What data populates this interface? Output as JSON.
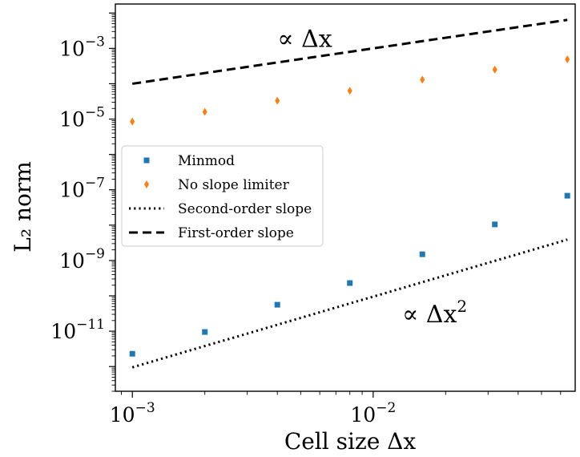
{
  "chart_data": {
    "type": "scatter",
    "x_scale": "log",
    "y_scale": "log",
    "xlim": [
      0.00085,
      0.069
    ],
    "ylim": [
      2e-13,
      0.018
    ],
    "xlabel": "Cell size Δx",
    "ylabel": "L₂ norm",
    "x_ticks": [
      {
        "value": 0.001,
        "base": "10",
        "exp": "−3"
      },
      {
        "value": 0.01,
        "base": "10",
        "exp": "−2"
      }
    ],
    "y_ticks": [
      {
        "value": 0.001,
        "base": "10",
        "exp": "−3"
      },
      {
        "value": 1e-05,
        "base": "10",
        "exp": "−5"
      },
      {
        "value": 1e-07,
        "base": "10",
        "exp": "−7"
      },
      {
        "value": 1e-09,
        "base": "10",
        "exp": "−9"
      },
      {
        "value": 1e-11,
        "base": "10",
        "exp": "−11"
      }
    ],
    "grid": false,
    "legend_position": "center-left",
    "series": [
      {
        "name": "Minmod",
        "kind": "markers",
        "marker": "square",
        "color": "#1f77b4",
        "x": [
          0.001,
          0.002,
          0.004,
          0.008,
          0.016,
          0.032,
          0.064
        ],
        "y": [
          2.3e-12,
          9.5e-12,
          5.6e-11,
          2.3e-10,
          1.5e-09,
          1.05e-08,
          6.8e-08
        ]
      },
      {
        "name": "No slope limiter",
        "kind": "markers",
        "marker": "thin_diamond",
        "color": "#ff7f0e",
        "x": [
          0.001,
          0.002,
          0.004,
          0.008,
          0.016,
          0.032,
          0.064
        ],
        "y": [
          8.5e-06,
          1.6e-05,
          3.3e-05,
          6.3e-05,
          0.00013,
          0.00025,
          0.00049
        ]
      },
      {
        "name": "Second-order slope",
        "kind": "line",
        "style": "dotted",
        "color": "#000000",
        "x": [
          0.001,
          0.064
        ],
        "y": [
          9.5e-13,
          3.9e-09
        ]
      },
      {
        "name": "First-order slope",
        "kind": "line",
        "style": "dashed",
        "color": "#000000",
        "x": [
          0.001,
          0.064
        ],
        "y": [
          0.0001,
          0.0064
        ]
      }
    ],
    "annotations": [
      {
        "text": "∝ Δx",
        "x": 0.0052,
        "y": 0.0011
      },
      {
        "text_main": "∝ Δx",
        "text_sup": "2",
        "x": 0.018,
        "y": 1.8e-11
      }
    ]
  }
}
